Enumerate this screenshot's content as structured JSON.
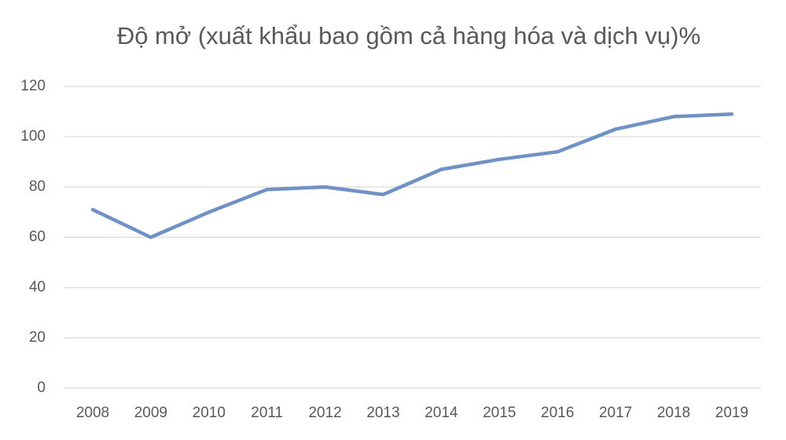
{
  "chart_data": {
    "type": "line",
    "title": "Độ mở (xuất khẩu bao gồm cả hàng hóa và dịch vụ)%",
    "categories": [
      "2008",
      "2009",
      "2010",
      "2011",
      "2012",
      "2013",
      "2014",
      "2015",
      "2016",
      "2017",
      "2018",
      "2019"
    ],
    "values": [
      71,
      60,
      70,
      79,
      80,
      77,
      87,
      91,
      94,
      103,
      108,
      109
    ],
    "color": "#6f91c6",
    "ylim": [
      0,
      120
    ],
    "yticks": [
      0,
      20,
      40,
      60,
      80,
      100,
      120
    ],
    "grid": true
  }
}
